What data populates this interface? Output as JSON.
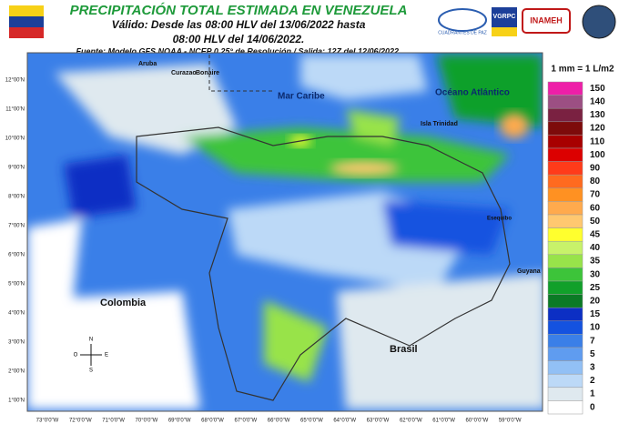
{
  "header": {
    "title": "PRECIPITACIÓN TOTAL ESTIMADA EN VENEZUELA",
    "subtitle_1": "Válido: Desde las 08:00 HLV del 13/06/2022 hasta",
    "subtitle_2": "08:00 HLV del 14/06/2022.",
    "source": "Fuente: Modelo GFS NOAA - NCEP 0,25° de Resolución / Salida: 12Z del 12/06/2022.",
    "logos": [
      "CUADRANTES DE PAZ",
      "VGRPC",
      "INAMEH"
    ]
  },
  "legend": {
    "title": "1 mm = 1 L/m2",
    "items": [
      {
        "label": "150",
        "color": "#ee1fa8"
      },
      {
        "label": "140",
        "color": "#9c4f83"
      },
      {
        "label": "130",
        "color": "#7a2141"
      },
      {
        "label": "120",
        "color": "#7d0b0b"
      },
      {
        "label": "110",
        "color": "#a80000"
      },
      {
        "label": "100",
        "color": "#dc0000"
      },
      {
        "label": "90",
        "color": "#ff3b1a"
      },
      {
        "label": "80",
        "color": "#ff6a1f"
      },
      {
        "label": "70",
        "color": "#ff9122"
      },
      {
        "label": "60",
        "color": "#ffaa4d"
      },
      {
        "label": "50",
        "color": "#ffc870"
      },
      {
        "label": "45",
        "color": "#ffff2e"
      },
      {
        "label": "40",
        "color": "#c8f26a"
      },
      {
        "label": "35",
        "color": "#98e34a"
      },
      {
        "label": "30",
        "color": "#3dc43a"
      },
      {
        "label": "25",
        "color": "#11a02a"
      },
      {
        "label": "20",
        "color": "#0b7a25"
      },
      {
        "label": "15",
        "color": "#0c2fc4"
      },
      {
        "label": "10",
        "color": "#1452e0"
      },
      {
        "label": "7",
        "color": "#3a7fe8"
      },
      {
        "label": "5",
        "color": "#5f9cf0"
      },
      {
        "label": "3",
        "color": "#92c0f5"
      },
      {
        "label": "2",
        "color": "#bcd9f7"
      },
      {
        "label": "1",
        "color": "#dfe9ef"
      },
      {
        "label": "0",
        "color": "#ffffff"
      }
    ]
  },
  "map": {
    "lat_labels": [
      "12°00'N",
      "11°00'N",
      "10°00'N",
      "9°00'N",
      "8°00'N",
      "7°00'N",
      "6°00'N",
      "5°00'N",
      "4°00'N",
      "3°00'N",
      "2°00'N",
      "1°00'N"
    ],
    "lon_labels": [
      "73°0'0\"W",
      "72°0'0\"W",
      "71°0'0\"W",
      "70°0'0\"W",
      "69°0'0\"W",
      "68°0'0\"W",
      "67°0'0\"W",
      "66°0'0\"W",
      "65°0'0\"W",
      "64°0'0\"W",
      "63°0'0\"W",
      "62°0'0\"W",
      "61°0'0\"W",
      "60°0'0\"W",
      "59°0'0\"W"
    ],
    "places": {
      "mar_caribe": "Mar Caribe",
      "oceano": "Océano Atlántico",
      "colombia": "Colombia",
      "brasil": "Brasil",
      "guyana": "Guyana",
      "aruba": "Aruba",
      "curazao": "Curazao",
      "bonaire": "Bonaire",
      "trinidad": "Isla Trinidad",
      "esequibo": "Esequibo"
    },
    "compass": [
      "N",
      "S",
      "E",
      "O"
    ]
  }
}
